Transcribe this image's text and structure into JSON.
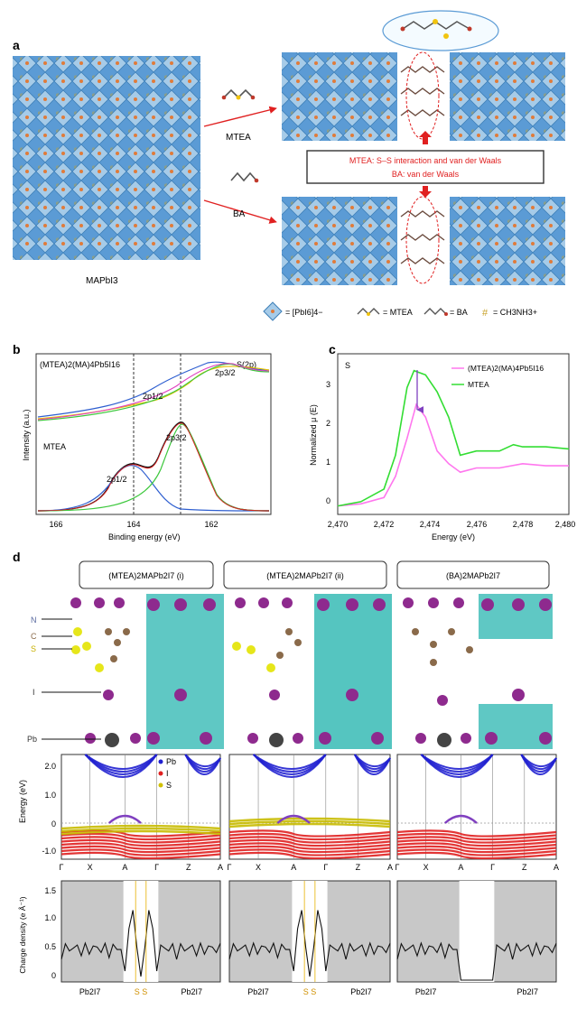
{
  "panel_a": {
    "label": "a",
    "left_crystal_label": "MAPbI3",
    "arrow_top_label": "MTEA",
    "arrow_bottom_label": "BA",
    "interaction_line1": "MTEA: S–S interaction and van der Waals",
    "interaction_line2": "BA: van der Waals",
    "legend": {
      "pbi6": "= [PbI6]4−",
      "mtea": "= MTEA",
      "ba": "= BA",
      "ma": "= CH3NH3+"
    }
  },
  "panel_b": {
    "label": "b",
    "title_sample": "(MTEA)2(MA)4Pb5I16",
    "title_edge": "S(2p)",
    "mtea_label": "MTEA",
    "peak1": "2p1/2",
    "peak2": "2p3/2",
    "ylabel": "Intensity (a.u.)",
    "xlabel": "Binding energy (eV)",
    "xticks": [
      "166",
      "164",
      "162"
    ]
  },
  "panel_c": {
    "label": "c",
    "element": "S",
    "ylabel": "Normalized μ (E)",
    "xlabel": "Energy (eV)",
    "legend": [
      "(MTEA)2(MA)4Pb5I16",
      "MTEA"
    ],
    "xticks": [
      "2,470",
      "2,472",
      "2,474",
      "2,476",
      "2,478",
      "2,480"
    ],
    "yticks": [
      "0",
      "1",
      "2",
      "3"
    ]
  },
  "panel_d": {
    "label": "d",
    "titles": [
      "(MTEA)2MAPb2I7 (i)",
      "(MTEA)2MAPb2I7 (ii)",
      "(BA)2MAPb2I7"
    ],
    "atoms": [
      "N",
      "C",
      "S",
      "I",
      "Pb"
    ],
    "band_ylabel": "Energy (eV)",
    "band_yticks": [
      "2.0",
      "1.0",
      "0",
      "-1.0"
    ],
    "band_legend": [
      "Pb",
      "I",
      "S"
    ],
    "kpoints": [
      "Γ",
      "X",
      "A",
      "Γ",
      "Z",
      "A"
    ],
    "charge_ylabel": "Charge density (e Å⁻¹)",
    "charge_yticks": [
      "1.5",
      "1.0",
      "0.5",
      "0"
    ],
    "charge_labels": [
      "Pb2I7",
      "S S",
      "Pb2I7"
    ]
  },
  "chart_data": [
    {
      "type": "line",
      "panel": "b",
      "title": "S(2p)",
      "xlabel": "Binding energy (eV)",
      "ylabel": "Intensity (a.u.)",
      "xlim": [
        166.5,
        160.5
      ],
      "series": [
        {
          "name": "(MTEA)2(MA)4Pb5I16",
          "x": [
            166.5,
            165,
            164,
            163.5,
            163,
            162.5,
            162.2,
            161.5,
            160.5
          ],
          "values": [
            0.55,
            0.6,
            0.66,
            0.72,
            0.78,
            0.86,
            0.9,
            0.8,
            0.72
          ]
        },
        {
          "name": "MTEA",
          "x": [
            166.5,
            165,
            164.3,
            164,
            163.5,
            163,
            162.8,
            162.5,
            162,
            161.5,
            160.5
          ],
          "values": [
            0.02,
            0.05,
            0.3,
            0.34,
            0.35,
            0.52,
            0.55,
            0.5,
            0.28,
            0.08,
            0.02
          ]
        }
      ]
    },
    {
      "type": "line",
      "panel": "c",
      "xlabel": "Energy (eV)",
      "ylabel": "Normalized μ (E)",
      "xlim": [
        2470,
        2480
      ],
      "ylim": [
        -0.2,
        3.6
      ],
      "series": [
        {
          "name": "(MTEA)2(MA)4Pb5I16",
          "x": [
            2470,
            2471,
            2472,
            2472.5,
            2473,
            2473.4,
            2473.8,
            2474.3,
            2474.8,
            2475.3,
            2476,
            2477,
            2478,
            2479,
            2480
          ],
          "values": [
            0.0,
            0.05,
            0.2,
            0.7,
            1.6,
            2.4,
            2.1,
            1.3,
            1.0,
            0.8,
            0.9,
            0.9,
            1.0,
            0.95,
            0.95
          ]
        },
        {
          "name": "MTEA",
          "x": [
            2470,
            2471,
            2472,
            2472.5,
            2473,
            2473.3,
            2473.8,
            2474.3,
            2474.8,
            2475.3,
            2476,
            2477,
            2477.6,
            2478,
            2479,
            2480
          ],
          "values": [
            0.0,
            0.1,
            0.4,
            1.2,
            2.8,
            3.2,
            3.1,
            2.7,
            2.1,
            1.2,
            1.3,
            1.3,
            1.45,
            1.4,
            1.4,
            1.35
          ]
        }
      ]
    }
  ]
}
